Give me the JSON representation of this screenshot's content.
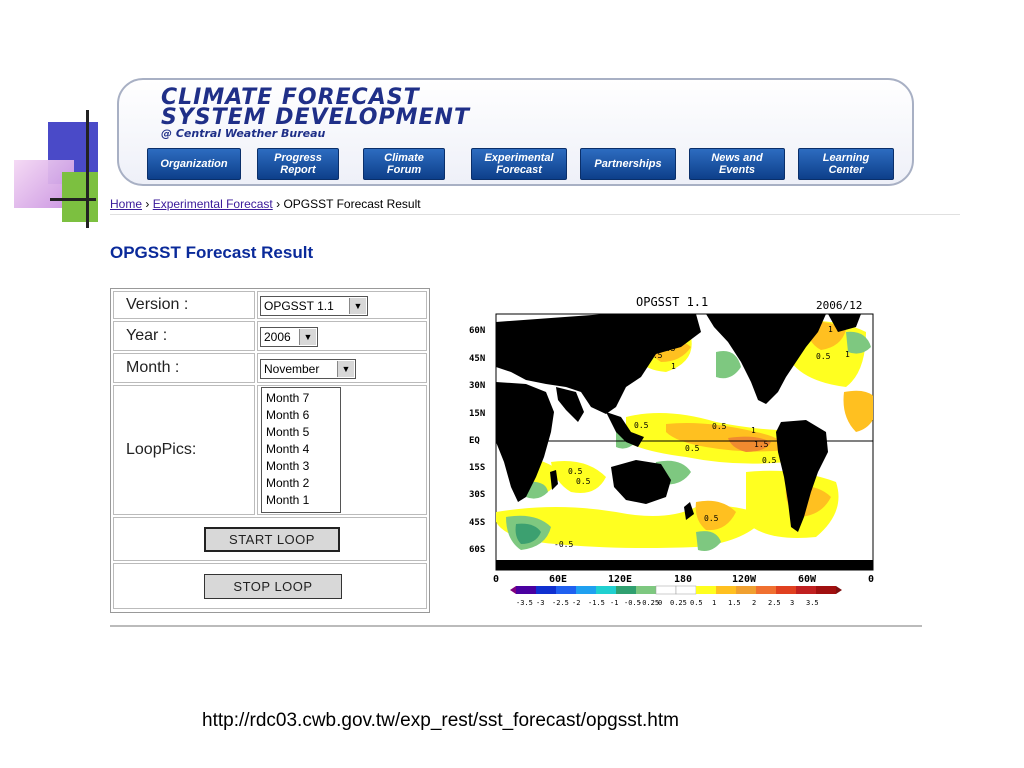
{
  "banner": {
    "title_line1": "CLIMATE FORECAST",
    "title_line2": "SYSTEM DEVELOPMENT",
    "title_line3": "@ Central Weather Bureau",
    "nav": [
      {
        "label_1": "Organization",
        "label_2": ""
      },
      {
        "label_1": "Progress",
        "label_2": "Report"
      },
      {
        "label_1": "Climate",
        "label_2": "Forum"
      },
      {
        "label_1": "Experimental",
        "label_2": "Forecast"
      },
      {
        "label_1": "Partnerships",
        "label_2": ""
      },
      {
        "label_1": "News and",
        "label_2": "Events"
      },
      {
        "label_1": "Learning",
        "label_2": "Center"
      }
    ]
  },
  "breadcrumb": {
    "home": "Home",
    "sep1": "›",
    "experimental": "Experimental Forecast",
    "sep2": "›",
    "current": "OPGSST Forecast Result"
  },
  "page_title": "OPGSST Forecast Result",
  "form": {
    "version_label": "Version :",
    "version_value": "OPGSST 1.1",
    "year_label": "Year :",
    "year_value": "2006",
    "month_label": "Month :",
    "month_value": "November",
    "looppics_label": "LoopPics:",
    "looppics_options": [
      "Month 7",
      "Month 6",
      "Month 5",
      "Month 4",
      "Month 3",
      "Month 2",
      "Month 1"
    ],
    "start_button": "START  LOOP",
    "stop_button": "STOP   LOOP"
  },
  "map": {
    "title": "OPGSST 1.1",
    "date": "2006/12",
    "lat_labels": [
      "60N",
      "45N",
      "30N",
      "15N",
      "EQ",
      "15S",
      "30S",
      "45S",
      "60S"
    ],
    "lon_labels": [
      "0",
      "60E",
      "120E",
      "180",
      "120W",
      "60W",
      "0"
    ],
    "colorbar_labels": [
      "-3.5",
      "-3",
      "-2.5",
      "-2",
      "-1.5",
      "-1",
      "-0.5",
      "-0.25",
      "0",
      "0.25",
      "0.5",
      "1",
      "1.5",
      "2",
      "2.5",
      "3",
      "3.5"
    ],
    "contour_labels": [
      "0.5",
      "1",
      "0.5",
      "1",
      "0.5",
      "0.5",
      "1",
      "1.5",
      "0.5",
      "0.5",
      "0.5",
      "0.5",
      "-0.5",
      "0.5",
      "1",
      "0.5"
    ],
    "colors": {
      "land": "#000000",
      "warm_light": "#ffff00",
      "warm_mid": "#ffc020",
      "warm_high": "#f08a30",
      "cool": "#7ec880",
      "cool_deep": "#3ca070",
      "ocean": "#ffffff"
    }
  },
  "footer": {
    "url": "http://rdc03.cwb.gov.tw/exp_rest/sst_forecast/opgsst.htm"
  }
}
